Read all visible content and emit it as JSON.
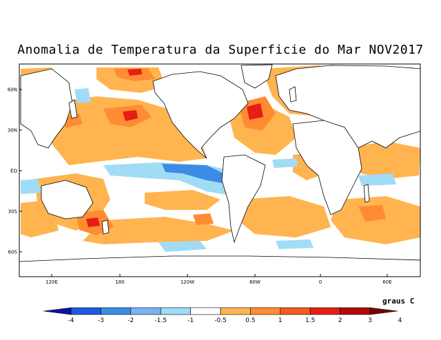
{
  "title": "Anomalia de Temperatura da Superficie do Mar NOV2017",
  "lat_labels": [
    "60N",
    "30N",
    "EQ",
    "30S",
    "60S"
  ],
  "lon_labels": [
    "120E",
    "180",
    "120W",
    "60W",
    "0",
    "60E"
  ],
  "legend": {
    "unit": "graus C",
    "ticks": [
      "-4",
      "-3",
      "-2",
      "-1.5",
      "-1",
      "-0.5",
      "0.5",
      "1",
      "1.5",
      "2",
      "3",
      "4"
    ],
    "colors": [
      "#0a14a0",
      "#1e5adc",
      "#3c8ce6",
      "#78b4f0",
      "#a0dcf5",
      "#ffffff",
      "#ffb450",
      "#ff8c32",
      "#f55a1e",
      "#e61e14",
      "#b40a0a",
      "#780000"
    ]
  },
  "colors": {
    "land": "#ffffff",
    "coast": "#000000",
    "warm": "#ffb450",
    "warmer": "#ff8c32",
    "hot": "#e61e14",
    "cool": "#a0dcf5",
    "cold": "#3c8ce6"
  }
}
